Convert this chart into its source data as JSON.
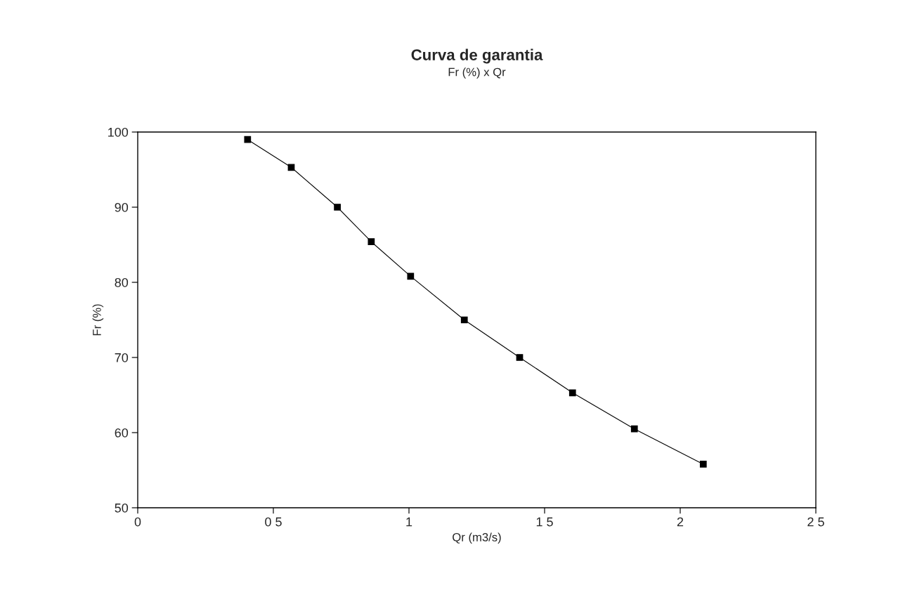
{
  "chart_data": {
    "type": "line",
    "title": "Curva de garantia",
    "subtitle": "Fr (%) x Qr",
    "xlabel": "Qr (m3/s)",
    "ylabel": "Fr (%)",
    "x": [
      0.405,
      0.566,
      0.736,
      0.861,
      1.006,
      1.204,
      1.408,
      1.603,
      1.831,
      2.085
    ],
    "series": [
      {
        "color": "#000000",
        "values": [
          99.0,
          95.3,
          90.0,
          85.4,
          80.8,
          75.0,
          70.0,
          65.3,
          60.5,
          55.8
        ]
      }
    ],
    "xlim": [
      0,
      2.5
    ],
    "ylim": [
      50,
      100
    ],
    "xticks": [
      0,
      {
        "value": 0.5,
        "label": "0 5"
      },
      1,
      {
        "value": 1.5,
        "label": "1 5"
      },
      2,
      {
        "value": 2.5,
        "label": "2 5"
      }
    ],
    "yticks": [
      50,
      60,
      70,
      80,
      90,
      100
    ],
    "marker": "square",
    "line_style": "solid",
    "grid": false,
    "legend": false
  }
}
